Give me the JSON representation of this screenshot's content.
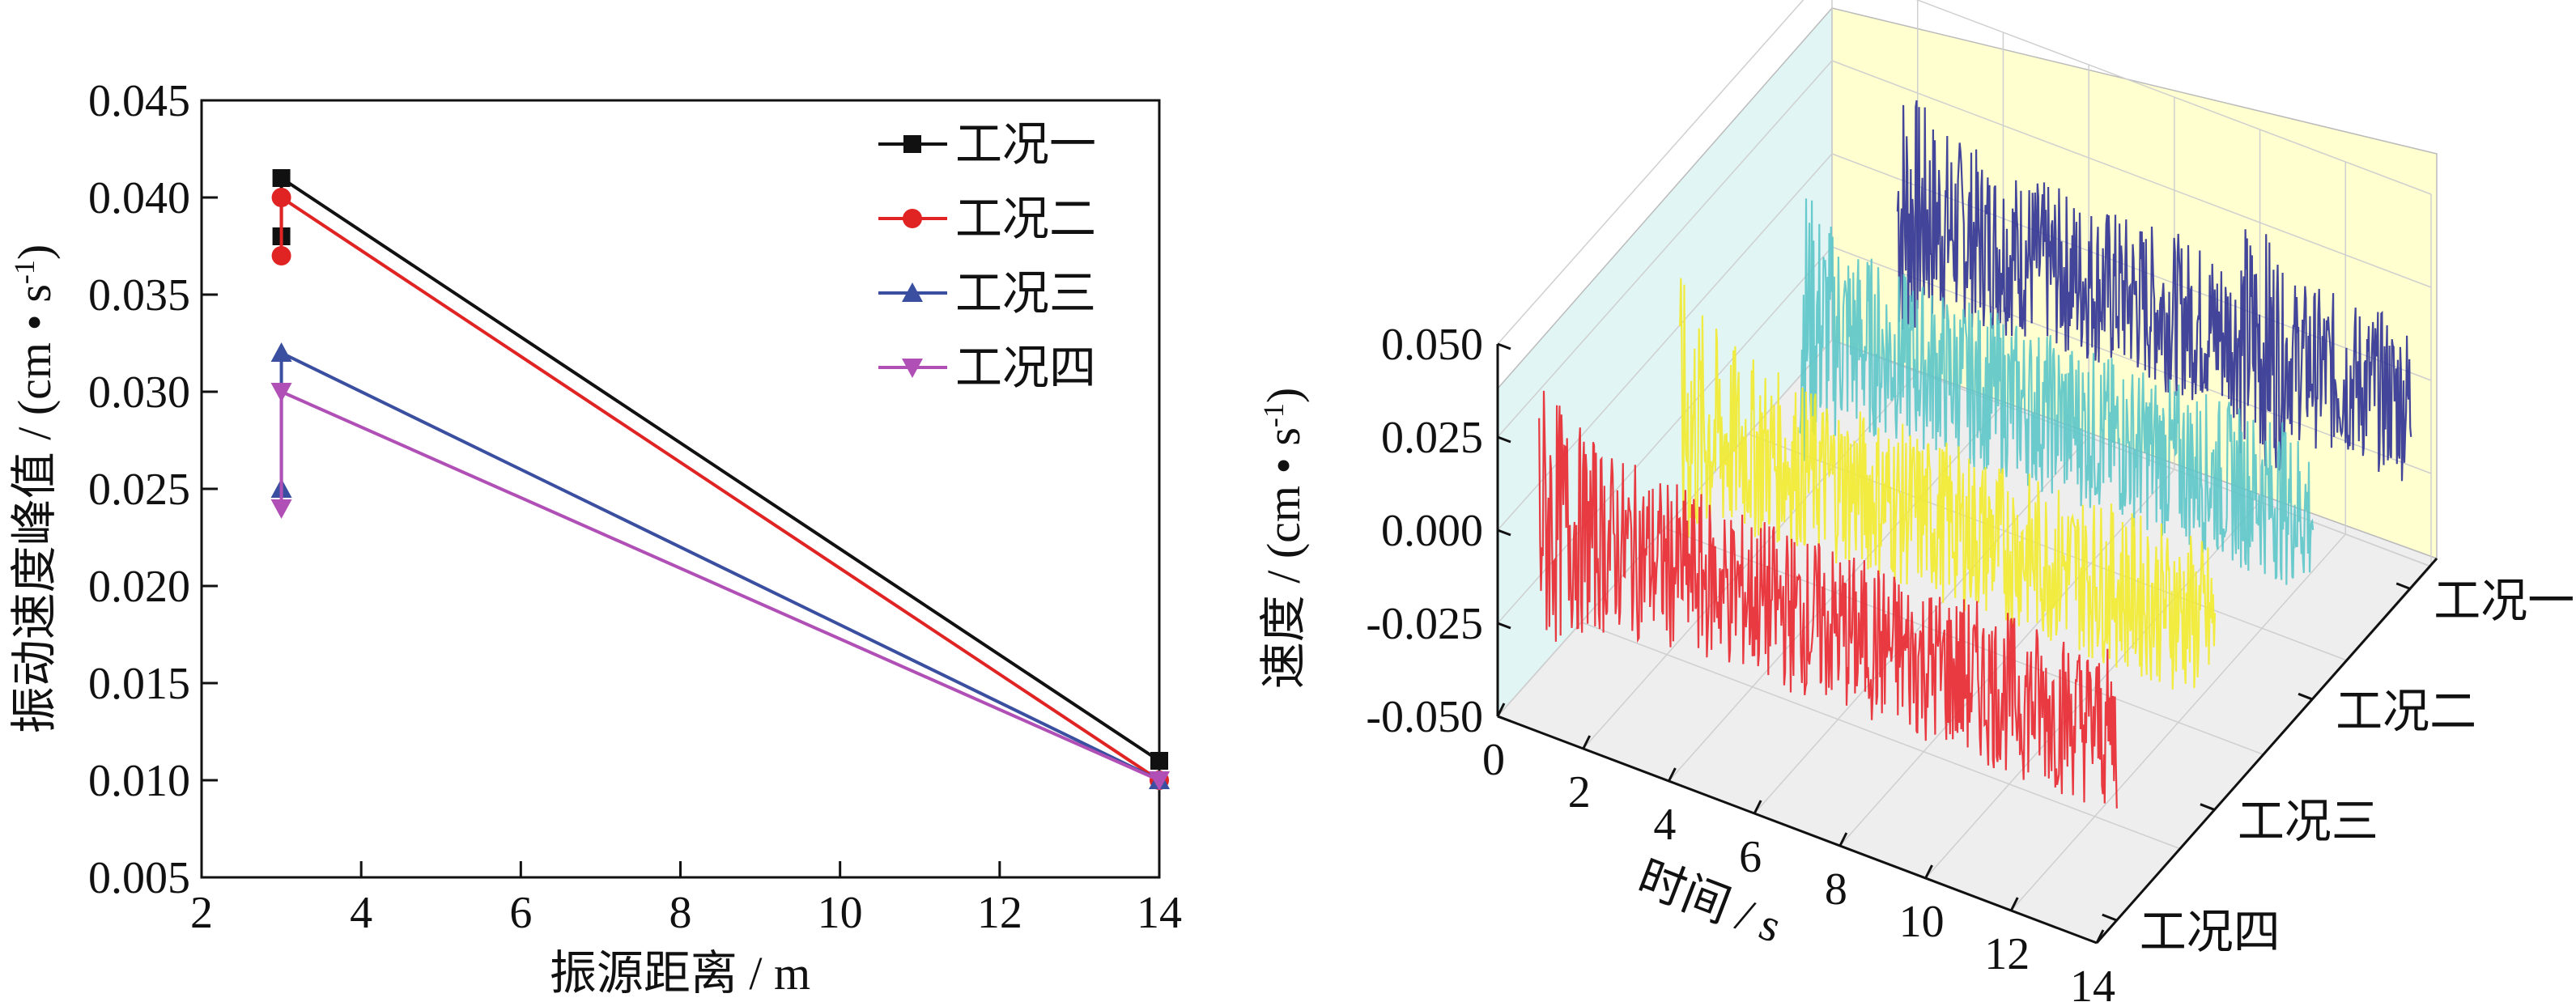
{
  "chart_data": [
    {
      "type": "line",
      "xlabel": "振源距离 / m",
      "ylabel": "振动速度峰值 / (cm • s",
      "ylabel_sup": "-1",
      "ylabel_close": ")",
      "xlim": [
        2,
        14
      ],
      "ylim": [
        0.005,
        0.045
      ],
      "x_ticks": [
        "2",
        "4",
        "6",
        "8",
        "10",
        "12",
        "14"
      ],
      "y_ticks": [
        "0.005",
        "0.010",
        "0.015",
        "0.020",
        "0.025",
        "0.030",
        "0.035",
        "0.040",
        "0.045"
      ],
      "legend_position": "top-right",
      "grid": false,
      "series": [
        {
          "name": "工况一",
          "color": "#111111",
          "marker": "square",
          "x": [
            3,
            3,
            14
          ],
          "y": [
            0.038,
            0.041,
            0.011
          ]
        },
        {
          "name": "工况二",
          "color": "#e02424",
          "marker": "circle",
          "x": [
            3,
            3,
            14
          ],
          "y": [
            0.037,
            0.04,
            0.01
          ]
        },
        {
          "name": "工况三",
          "color": "#3b4fa0",
          "marker": "triangle-up",
          "x": [
            3,
            3,
            14
          ],
          "y": [
            0.025,
            0.032,
            0.01
          ]
        },
        {
          "name": "工况四",
          "color": "#b04fb5",
          "marker": "triangle-down",
          "x": [
            3,
            3,
            14
          ],
          "y": [
            0.024,
            0.03,
            0.01
          ]
        }
      ]
    },
    {
      "type": "line",
      "view": "3d-waterfall",
      "xlabel": "时间 / s",
      "ylabel": "速度 / (cm • s",
      "ylabel_sup": "-1",
      "ylabel_close": ")",
      "xlim": [
        0,
        14
      ],
      "zlim": [
        -0.05,
        0.05
      ],
      "x_ticks": [
        "0",
        "2",
        "4",
        "6",
        "8",
        "10",
        "12",
        "14"
      ],
      "z_ticks": [
        "-0.050",
        "-0.025",
        "0.000",
        "0.025",
        "0.050"
      ],
      "categories": [
        "工况一",
        "工况二",
        "工况三",
        "工况四"
      ],
      "grid": true,
      "series": [
        {
          "name": "工况一",
          "color": "#2e3192",
          "t_range": [
            2,
            14
          ],
          "peak": 0.05,
          "decay": 0.0
        },
        {
          "name": "工况二",
          "color": "#5bc5c8",
          "t_range": [
            2,
            14
          ],
          "peak": 0.05,
          "decay": 0.0
        },
        {
          "name": "工况三",
          "color": "#f2ea2c",
          "t_range": [
            1.5,
            14
          ],
          "peak": 0.05,
          "decay": 0.0
        },
        {
          "name": "工况四",
          "color": "#e8262d",
          "t_range": [
            0.5,
            14
          ],
          "peak": 0.05,
          "decay": 0.0
        }
      ]
    }
  ]
}
